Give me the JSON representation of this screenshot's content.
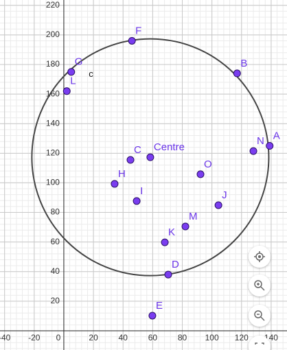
{
  "chart_data": {
    "type": "scatter",
    "points": [
      {
        "name": "F",
        "x": 46,
        "y": 196
      },
      {
        "name": "G",
        "x": 5,
        "y": 175
      },
      {
        "name": "L",
        "x": 2,
        "y": 162
      },
      {
        "name": "B",
        "x": 117,
        "y": 174
      },
      {
        "name": "A",
        "x": 139,
        "y": 125
      },
      {
        "name": "N",
        "x": 128,
        "y": 121.5
      },
      {
        "name": "C",
        "x": 45,
        "y": 115.5
      },
      {
        "name": "Centre",
        "x": 58.4,
        "y": 117.3
      },
      {
        "name": "H",
        "x": 34.3,
        "y": 99.3
      },
      {
        "name": "O",
        "x": 92.3,
        "y": 105.8
      },
      {
        "name": "I",
        "x": 49.2,
        "y": 87.7
      },
      {
        "name": "J",
        "x": 104.4,
        "y": 84.9
      },
      {
        "name": "M",
        "x": 82.1,
        "y": 70.5
      },
      {
        "name": "K",
        "x": 68.2,
        "y": 59.8
      },
      {
        "name": "D",
        "x": 70.5,
        "y": 38
      },
      {
        "name": "E",
        "x": 59.8,
        "y": 10.2
      }
    ],
    "circle": {
      "name": "c",
      "cx": 58.4,
      "cy": 117.3,
      "r": 80
    },
    "color": "#7a3df0",
    "xlim": [
      -43.1,
      150.7
    ],
    "ylim": [
      -13,
      223.6
    ],
    "xticks": [
      -40,
      -20,
      0,
      20,
      40,
      60,
      80,
      100,
      120,
      140
    ],
    "yticks": [
      20,
      40,
      60,
      80,
      100,
      120,
      140,
      160,
      180,
      200,
      220
    ],
    "grid": true,
    "minor_grid_divisions": 5
  }
}
